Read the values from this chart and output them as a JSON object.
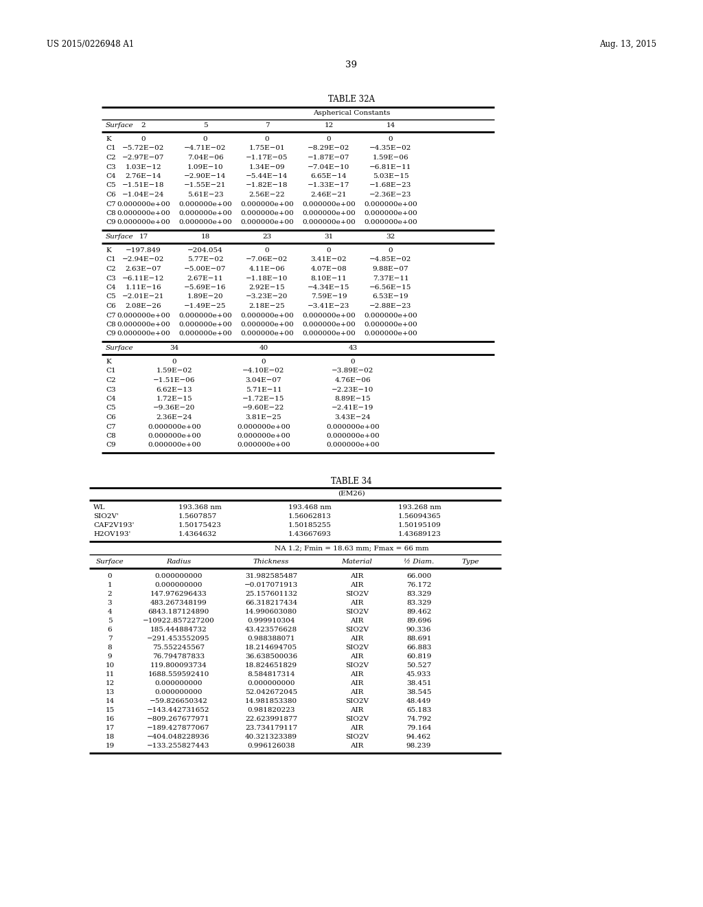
{
  "header_left": "US 2015/0226948 A1",
  "header_right": "Aug. 13, 2015",
  "page_number": "39",
  "table32a_title": "TABLE 32A",
  "table32a_subtitle": "Aspherical Constants",
  "table32a_block1_header": [
    "Surface",
    "2",
    "5",
    "7",
    "12",
    "14"
  ],
  "table32a_block1_data": [
    [
      "K",
      "0",
      "0",
      "0",
      "0",
      "0"
    ],
    [
      "C1",
      "−5.72E−02",
      "−4.71E−02",
      "1.75E−01",
      "−8.29E−02",
      "−4.35E−02"
    ],
    [
      "C2",
      "−2.97E−07",
      "7.04E−06",
      "−1.17E−05",
      "−1.87E−07",
      "1.59E−06"
    ],
    [
      "C3",
      "1.03E−12",
      "1.09E−10",
      "1.34E−09",
      "−7.04E−10",
      "−6.81E−11"
    ],
    [
      "C4",
      "2.76E−14",
      "−2.90E−14",
      "−5.44E−14",
      "6.65E−14",
      "5.03E−15"
    ],
    [
      "C5",
      "−1.51E−18",
      "−1.55E−21",
      "−1.82E−18",
      "−1.33E−17",
      "−1.68E−23"
    ],
    [
      "C6",
      "−1.04E−24",
      "5.61E−23",
      "2.56E−22",
      "2.46E−21",
      "−2.36E−23"
    ],
    [
      "C7",
      "0.000000e+00",
      "0.000000e+00",
      "0.000000e+00",
      "0.000000e+00",
      "0.000000e+00"
    ],
    [
      "C8",
      "0.000000e+00",
      "0.000000e+00",
      "0.000000e+00",
      "0.000000e+00",
      "0.000000e+00"
    ],
    [
      "C9",
      "0.000000e+00",
      "0.000000e+00",
      "0.000000e+00",
      "0.000000e+00",
      "0.000000e+00"
    ]
  ],
  "table32a_block2_header": [
    "Surface",
    "17",
    "18",
    "23",
    "31",
    "32"
  ],
  "table32a_block2_data": [
    [
      "K",
      "−197.849",
      "−204.054",
      "0",
      "0",
      "0"
    ],
    [
      "C1",
      "−2.94E−02",
      "5.77E−02",
      "−7.06E−02",
      "3.41E−02",
      "−4.85E−02"
    ],
    [
      "C2",
      "2.63E−07",
      "−5.00E−07",
      "4.11E−06",
      "4.07E−08",
      "9.88E−07"
    ],
    [
      "C3",
      "−6.11E−12",
      "2.67E−11",
      "−1.18E−10",
      "8.10E−11",
      "7.37E−11"
    ],
    [
      "C4",
      "1.11E−16",
      "−5.69E−16",
      "2.92E−15",
      "−4.34E−15",
      "−6.56E−15"
    ],
    [
      "C5",
      "−2.01E−21",
      "1.89E−20",
      "−3.23E−20",
      "7.59E−19",
      "6.53E−19"
    ],
    [
      "C6",
      "2.08E−26",
      "−1.49E−25",
      "2.18E−25",
      "−3.41E−23",
      "−2.88E−23"
    ],
    [
      "C7",
      "0.000000e+00",
      "0.000000e+00",
      "0.000000e+00",
      "0.000000e+00",
      "0.000000e+00"
    ],
    [
      "C8",
      "0.000000e+00",
      "0.000000e+00",
      "0.000000e+00",
      "0.000000e+00",
      "0.000000e+00"
    ],
    [
      "C9",
      "0.000000e+00",
      "0.000000e+00",
      "0.000000e+00",
      "0.000000e+00",
      "0.000000e+00"
    ]
  ],
  "table32a_block3_header": [
    "Surface",
    "34",
    "40",
    "43"
  ],
  "table32a_block3_data": [
    [
      "K",
      "0",
      "0",
      "0"
    ],
    [
      "C1",
      "1.59E−02",
      "−4.10E−02",
      "−3.89E−02"
    ],
    [
      "C2",
      "−1.51E−06",
      "3.04E−07",
      "4.76E−06"
    ],
    [
      "C3",
      "6.62E−13",
      "5.71E−11",
      "−2.23E−10"
    ],
    [
      "C4",
      "1.72E−15",
      "−1.72E−15",
      "8.89E−15"
    ],
    [
      "C5",
      "−9.36E−20",
      "−9.60E−22",
      "−2.41E−19"
    ],
    [
      "C6",
      "2.36E−24",
      "3.81E−25",
      "3.43E−24"
    ],
    [
      "C7",
      "0.000000e+00",
      "0.000000e+00",
      "0.000000e+00"
    ],
    [
      "C8",
      "0.000000e+00",
      "0.000000e+00",
      "0.000000e+00"
    ],
    [
      "C9",
      "0.000000e+00",
      "0.000000e+00",
      "0.000000e+00"
    ]
  ],
  "table34_title": "TABLE 34",
  "table34_subtitle": "(EM26)",
  "table34_wl_header": [
    "WL",
    "SIO2V'",
    "CAF2V193'",
    "H2OV193'"
  ],
  "table34_wl_data": [
    [
      "193.368 nm",
      "193.468 nm",
      "193.268 nm"
    ],
    [
      "1.5607857",
      "1.56062813",
      "1.56094365"
    ],
    [
      "1.50175423",
      "1.50185255",
      "1.50195109"
    ],
    [
      "1.4364632",
      "1.43667693",
      "1.43689123"
    ]
  ],
  "table34_na_text": "NA 1.2; Fmin = 18.63 mm; Fmax = 66 mm",
  "table34_main_header": [
    "Surface",
    "Radius",
    "Thickness",
    "Material",
    "½ Diam.",
    "Type"
  ],
  "table34_main_data": [
    [
      "0",
      "0.000000000",
      "31.982585487",
      "AIR",
      "66.000",
      ""
    ],
    [
      "1",
      "0.000000000",
      "−0.017071913",
      "AIR",
      "76.172",
      ""
    ],
    [
      "2",
      "147.976296433",
      "25.157601132",
      "SIO2V",
      "83.329",
      ""
    ],
    [
      "3",
      "483.267348199",
      "66.318217434",
      "AIR",
      "83.329",
      ""
    ],
    [
      "4",
      "6843.187124890",
      "14.990603080",
      "SIO2V",
      "89.462",
      ""
    ],
    [
      "5",
      "−10922.857227200",
      "0.999910304",
      "AIR",
      "89.696",
      ""
    ],
    [
      "6",
      "185.444884732",
      "43.423576628",
      "SIO2V",
      "90.336",
      ""
    ],
    [
      "7",
      "−291.453552095",
      "0.988388071",
      "AIR",
      "88.691",
      ""
    ],
    [
      "8",
      "75.552245567",
      "18.214694705",
      "SIO2V",
      "66.883",
      ""
    ],
    [
      "9",
      "76.794787833",
      "36.638500036",
      "AIR",
      "60.819",
      ""
    ],
    [
      "10",
      "119.800093734",
      "18.824651829",
      "SIO2V",
      "50.527",
      ""
    ],
    [
      "11",
      "1688.559592410",
      "8.584817314",
      "AIR",
      "45.933",
      ""
    ],
    [
      "12",
      "0.000000000",
      "0.000000000",
      "AIR",
      "38.451",
      ""
    ],
    [
      "13",
      "0.000000000",
      "52.042672045",
      "AIR",
      "38.545",
      ""
    ],
    [
      "14",
      "−59.826650342",
      "14.981853380",
      "SIO2V",
      "48.449",
      ""
    ],
    [
      "15",
      "−143.442731652",
      "0.981820223",
      "AIR",
      "65.183",
      ""
    ],
    [
      "16",
      "−809.267677971",
      "22.623991877",
      "SIO2V",
      "74.792",
      ""
    ],
    [
      "17",
      "−189.427877067",
      "23.734179117",
      "AIR",
      "79.164",
      ""
    ],
    [
      "18",
      "−404.048228936",
      "40.321323389",
      "SIO2V",
      "94.462",
      ""
    ],
    [
      "19",
      "−133.255827443",
      "0.996126038",
      "AIR",
      "98.239",
      ""
    ]
  ],
  "bg_color": "#ffffff",
  "text_color": "#000000",
  "font_size": 7.5,
  "title_font_size": 8.5
}
